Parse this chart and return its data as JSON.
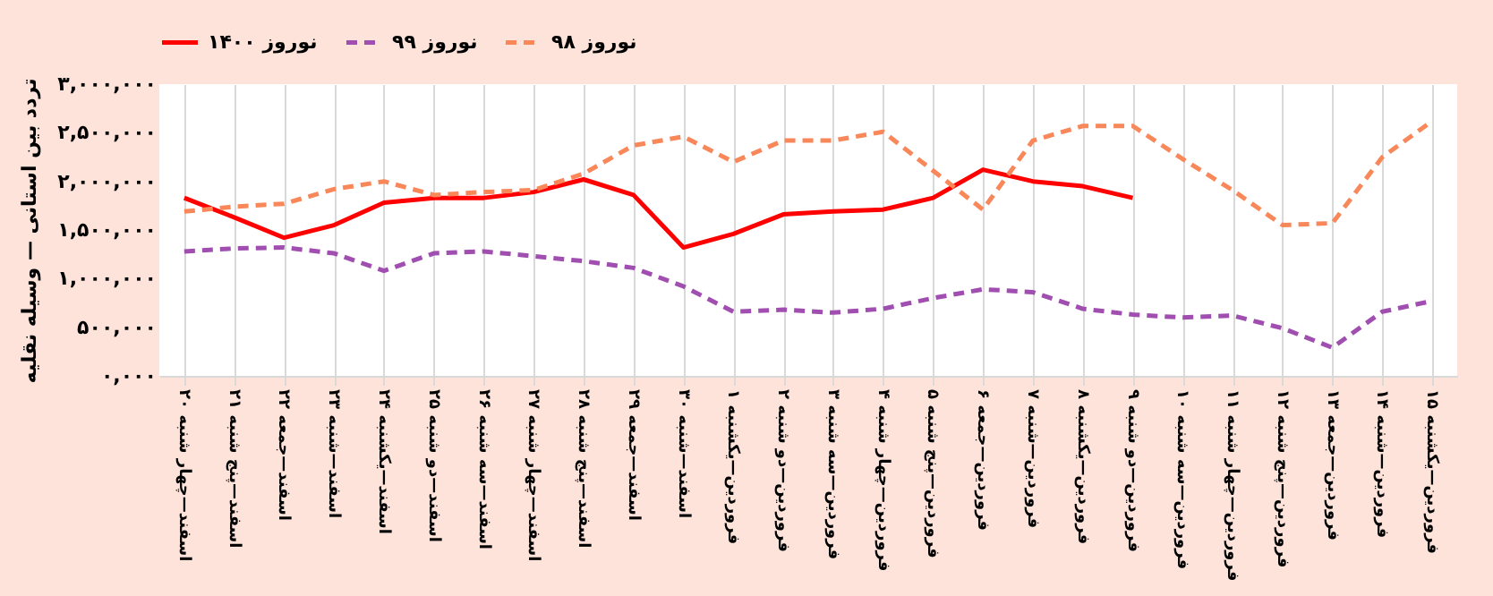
{
  "chart_data": {
    "type": "line",
    "ylabel": "تردد بین استانی — وسیله نقلیه",
    "categories": [
      "۲۰ اسفند—چهار شنبه",
      "۲۱ اسفند—پنج شنبه",
      "۲۲ اسفند—جمعه",
      "۲۳ اسفند—شنبه",
      "۲۴ اسفند—یکشنبه",
      "۲۵ اسفند—دو شنبه",
      "۲۶ اسفند—سه شنبه",
      "۲۷ اسفند—چهار شنبه",
      "۲۸ اسفند—پنج شنبه",
      "۲۹ اسفند—جمعه",
      "۳۰ اسفند—شنبه",
      "۱ فروردین—یکشنبه",
      "۲ فروردین—دو شنبه",
      "۳ فروردین—سه شنبه",
      "۴ فروردین—چهار شنبه",
      "۵ فروردین—پنج شنبه",
      "۶ فروردین—جمعه",
      "۷ فروردین—شنبه",
      "۸ فروردین—یکشنبه",
      "۹ فروردین—دو شنبه",
      "۱۰ فروردین—سه شنبه",
      "۱۱ فروردین—چهار شنبه",
      "۱۲ فروردین—پنج شنبه",
      "۱۳ فروردین—جمعه",
      "۱۴ فروردین—شنبه",
      "۱۵ فروردین—یکشنبه"
    ],
    "series": [
      {
        "name": "نوروز ۱۴۰۰",
        "color": "#ff0000",
        "line_style": "solid",
        "values": [
          1830000,
          1630000,
          1420000,
          1550000,
          1780000,
          1830000,
          1830000,
          1890000,
          2020000,
          1860000,
          1320000,
          1460000,
          1660000,
          1690000,
          1710000,
          1830000,
          2120000,
          2000000,
          1950000,
          1830000,
          null,
          null,
          null,
          null,
          null,
          null
        ]
      },
      {
        "name": "نوروز ۹۹",
        "color": "#a04fb0",
        "line_style": "dashed",
        "values": [
          1280000,
          1310000,
          1320000,
          1260000,
          1080000,
          1260000,
          1280000,
          1230000,
          1180000,
          1110000,
          920000,
          660000,
          680000,
          650000,
          690000,
          800000,
          890000,
          860000,
          690000,
          630000,
          600000,
          620000,
          490000,
          290000,
          660000,
          770000
        ]
      },
      {
        "name": "نوروز ۹۸",
        "color": "#f8875a",
        "line_style": "dashed",
        "values": [
          1690000,
          1740000,
          1770000,
          1920000,
          2000000,
          1860000,
          1890000,
          1910000,
          2080000,
          2370000,
          2460000,
          2200000,
          2420000,
          2420000,
          2510000,
          2110000,
          1710000,
          2420000,
          2570000,
          2570000,
          2230000,
          1910000,
          1550000,
          1570000,
          2250000,
          2620000
        ]
      }
    ],
    "ylim": [
      0,
      3000000
    ],
    "yticks": [
      {
        "value": 0,
        "label": "۰,۰۰۰"
      },
      {
        "value": 500000,
        "label": "۵۰۰,۰۰۰"
      },
      {
        "value": 1000000,
        "label": "۱,۰۰۰,۰۰۰"
      },
      {
        "value": 1500000,
        "label": "۱,۵۰۰,۰۰۰"
      },
      {
        "value": 2000000,
        "label": "۲,۰۰۰,۰۰۰"
      },
      {
        "value": 2500000,
        "label": "۲,۵۰۰,۰۰۰"
      },
      {
        "value": 3000000,
        "label": "۳,۰۰۰,۰۰۰"
      }
    ],
    "grid": "x",
    "legend": "top",
    "marker": "none"
  }
}
